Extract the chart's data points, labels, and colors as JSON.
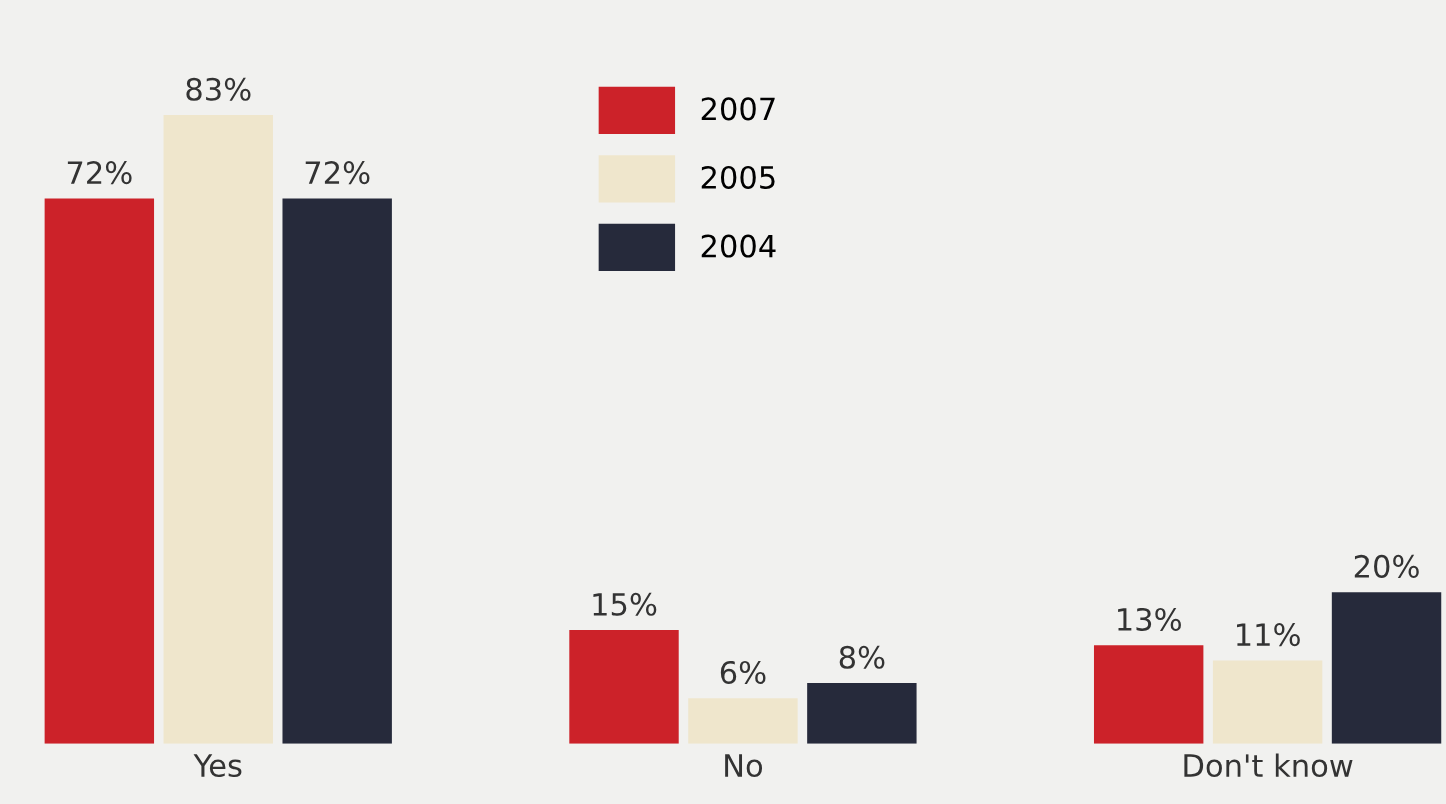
{
  "chart_data": {
    "type": "bar",
    "categories": [
      "Yes",
      "No",
      "Don't know"
    ],
    "series": [
      {
        "name": "2007",
        "color": "#cc2229",
        "values": [
          72,
          15,
          13
        ],
        "value_labels": [
          "72%",
          "15%",
          "13%"
        ]
      },
      {
        "name": "2005",
        "color": "#efe6cc",
        "values": [
          83,
          6,
          11
        ],
        "value_labels": [
          "83%",
          "6%",
          "11%"
        ]
      },
      {
        "name": "2004",
        "color": "#262a3b",
        "values": [
          72,
          8,
          20
        ],
        "value_labels": [
          "72%",
          "8%",
          "20%"
        ]
      }
    ],
    "relative": false,
    "legend": "top",
    "grid": false
  }
}
